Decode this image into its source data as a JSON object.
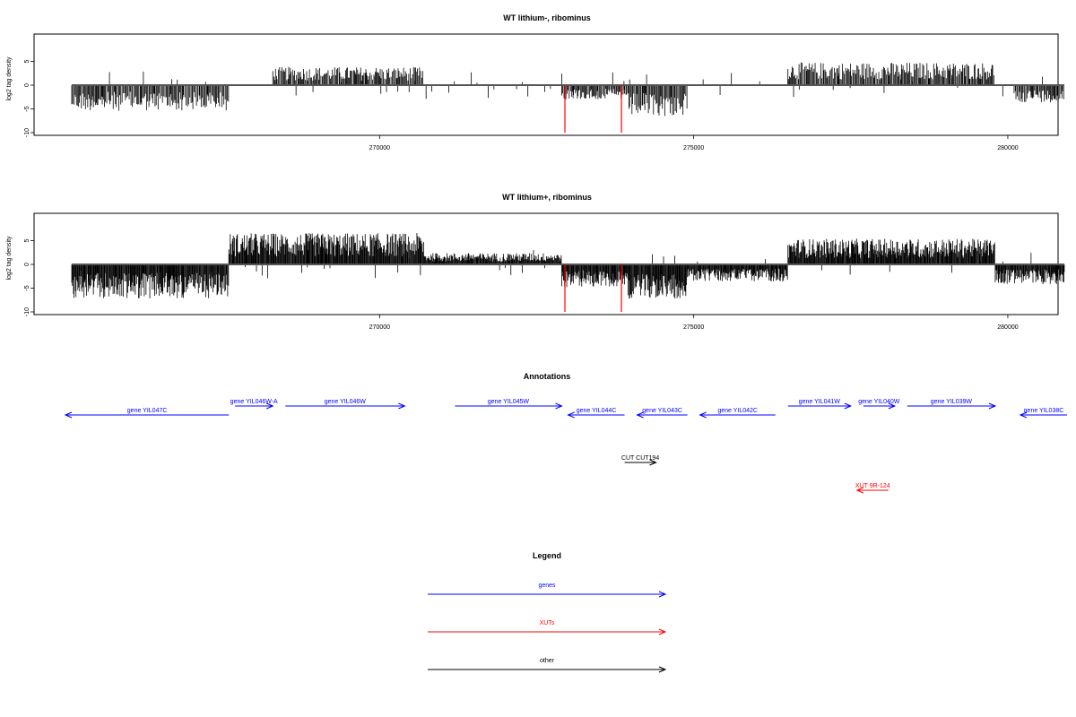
{
  "panels": {
    "top_title": "WT lithium-, ribominus",
    "bottom_title": "WT lithium+, ribominus",
    "ylabel": "log2 tag density",
    "y_ticks": [
      "-10",
      "-5",
      "0",
      "5"
    ],
    "x_ticks": [
      "270000",
      "275000",
      "280000"
    ]
  },
  "annotations": {
    "title": "Annotations",
    "genes": [
      {
        "label": "gene YIL047C",
        "strand": "-",
        "start": 265000,
        "end": 267600
      },
      {
        "label": "gene YIL046W-A",
        "strand": "+",
        "start": 267700,
        "end": 268300
      },
      {
        "label": "gene YIL046W",
        "strand": "+",
        "start": 268500,
        "end": 270400
      },
      {
        "label": "gene YIL045W",
        "strand": "+",
        "start": 271200,
        "end": 272900
      },
      {
        "label": "gene YIL044C",
        "strand": "-",
        "start": 273000,
        "end": 273900
      },
      {
        "label": "gene YIL043C",
        "strand": "-",
        "start": 274100,
        "end": 274900
      },
      {
        "label": "gene YIL042C",
        "strand": "-",
        "start": 275100,
        "end": 276300
      },
      {
        "label": "gene YIL041W",
        "strand": "+",
        "start": 276500,
        "end": 277500
      },
      {
        "label": "gene YIL040W",
        "strand": "+",
        "start": 277700,
        "end": 278200
      },
      {
        "label": "gene YIL039W",
        "strand": "+",
        "start": 278400,
        "end": 279800
      },
      {
        "label": "gene YIL038C",
        "strand": "-",
        "start": 280200,
        "end": 281800
      }
    ],
    "cuts": [
      {
        "label": "CUT CUT194",
        "strand": "+",
        "start": 273900,
        "end": 274400
      }
    ],
    "xuts": [
      {
        "label": "XUT 9R-124",
        "strand": "-",
        "start": 277600,
        "end": 278100
      }
    ]
  },
  "legend": {
    "title": "Legend",
    "items": [
      {
        "label": "genes",
        "color": "#0000ff"
      },
      {
        "label": "XUTs",
        "color": "#ff0000"
      },
      {
        "label": "other",
        "color": "#000000"
      }
    ]
  },
  "chart_data": [
    {
      "type": "bar",
      "title": "WT lithium-, ribominus",
      "xlabel": "",
      "ylabel": "log2 tag density",
      "xlim": [
        264500,
        280800
      ],
      "ylim": [
        -10,
        10
      ],
      "x_ticks": [
        270000,
        275000,
        280000
      ],
      "y_ticks": [
        -10,
        -5,
        0,
        5
      ],
      "red_spikes": [
        {
          "x": 272950,
          "y": -10
        },
        {
          "x": 273850,
          "y": -10
        }
      ],
      "segments": [
        {
          "start": 265100,
          "end": 267600,
          "strand": "-",
          "amplitude": 4.5
        },
        {
          "start": 268300,
          "end": 270700,
          "strand": "+",
          "amplitude": 3.2
        },
        {
          "start": 272900,
          "end": 273900,
          "strand": "-",
          "amplitude": 2.5
        },
        {
          "start": 273900,
          "end": 274900,
          "strand": "-",
          "amplitude": 5.5
        },
        {
          "start": 276500,
          "end": 279800,
          "strand": "+",
          "amplitude": 4.0
        },
        {
          "start": 280100,
          "end": 280900,
          "strand": "-",
          "amplitude": 3.0
        }
      ]
    },
    {
      "type": "bar",
      "title": "WT lithium+, ribominus",
      "xlabel": "",
      "ylabel": "log2 tag density",
      "xlim": [
        264500,
        280800
      ],
      "ylim": [
        -10,
        10
      ],
      "x_ticks": [
        270000,
        275000,
        280000
      ],
      "y_ticks": [
        -10,
        -5,
        0,
        5
      ],
      "red_spikes": [
        {
          "x": 272950,
          "y": -10
        },
        {
          "x": 273850,
          "y": -10
        }
      ],
      "segments": [
        {
          "start": 265100,
          "end": 267600,
          "strand": "-",
          "amplitude": 6.0
        },
        {
          "start": 267600,
          "end": 270700,
          "strand": "+",
          "amplitude": 5.5
        },
        {
          "start": 270700,
          "end": 272900,
          "strand": "+",
          "amplitude": 2.0
        },
        {
          "start": 272900,
          "end": 273900,
          "strand": "-",
          "amplitude": 4.0
        },
        {
          "start": 273900,
          "end": 274900,
          "strand": "-",
          "amplitude": 6.0
        },
        {
          "start": 274900,
          "end": 276500,
          "strand": "-",
          "amplitude": 3.0
        },
        {
          "start": 276500,
          "end": 279800,
          "strand": "+",
          "amplitude": 4.5
        },
        {
          "start": 279800,
          "end": 280900,
          "strand": "-",
          "amplitude": 3.5
        }
      ]
    }
  ]
}
